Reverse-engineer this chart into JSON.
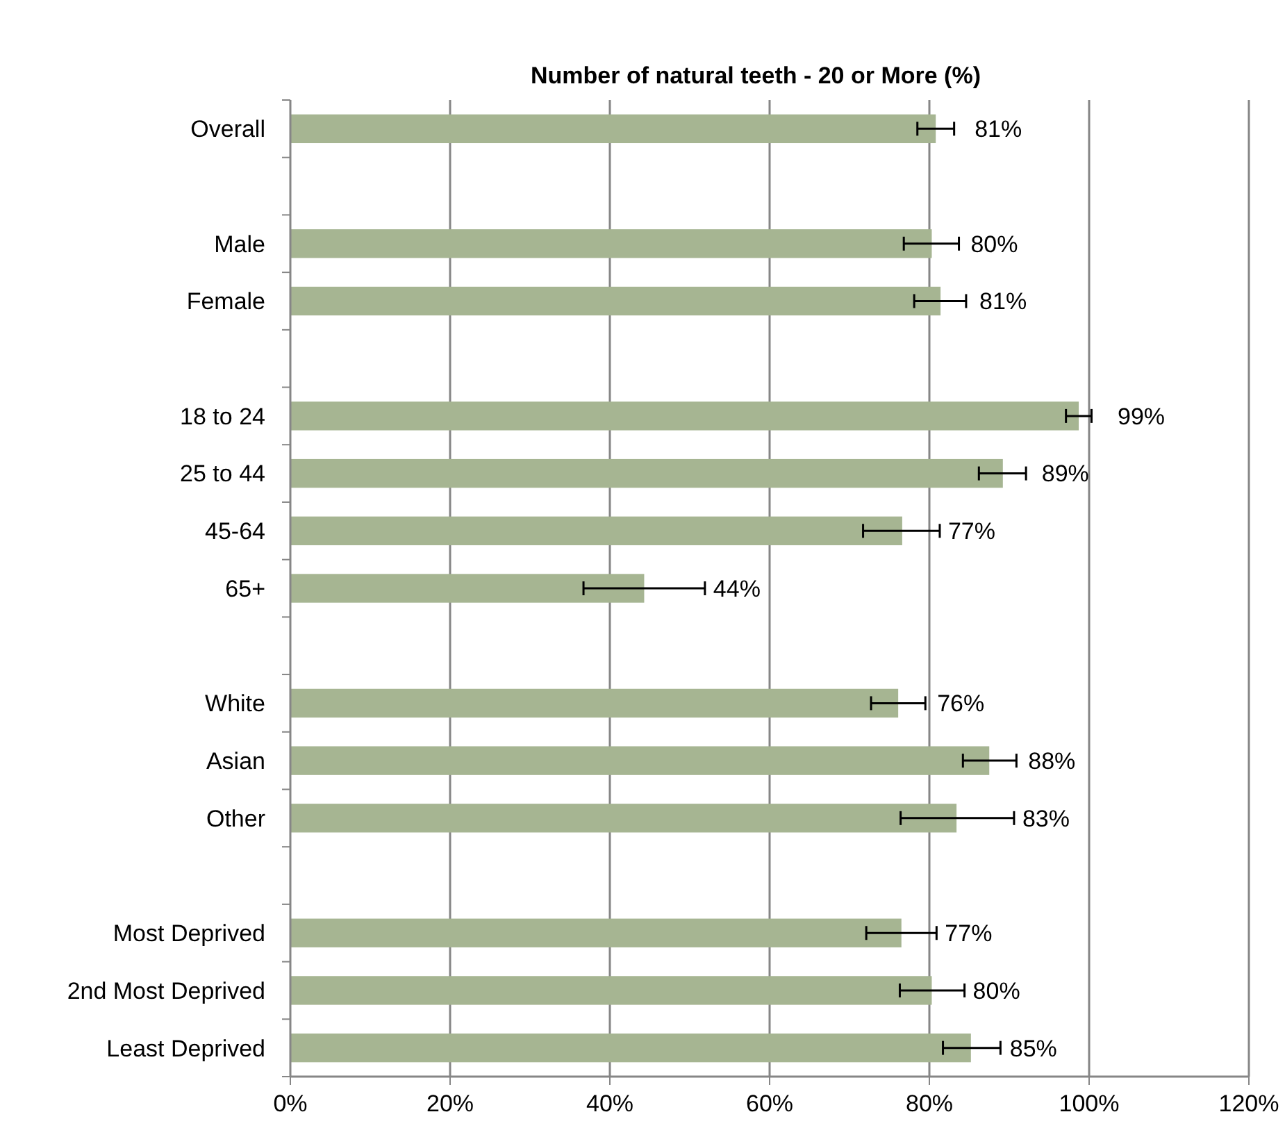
{
  "chart_data": {
    "type": "bar",
    "orientation": "horizontal",
    "title": "Number of natural teeth - 20 or More (%)",
    "categories": [
      "Overall",
      null,
      "Male",
      "Female",
      null,
      "18 to 24",
      "25 to 44",
      "45-64",
      "65+",
      null,
      "White",
      "Asian",
      "Other",
      null,
      "Most Deprived",
      "2nd Most Deprived",
      "Least Deprived"
    ],
    "series": [
      {
        "color": "#a6b592",
        "values": [
          80.8,
          null,
          80.3,
          81.4,
          null,
          98.7,
          89.2,
          76.6,
          44.3,
          null,
          76.1,
          87.5,
          83.4,
          null,
          76.5,
          80.3,
          85.2
        ],
        "errors": [
          [
            78.5,
            83.1
          ],
          null,
          [
            76.8,
            83.7
          ],
          [
            78.1,
            84.6
          ],
          null,
          [
            97.1,
            100.3
          ],
          [
            86.2,
            92.1
          ],
          [
            71.7,
            81.3
          ],
          [
            36.7,
            51.9
          ],
          null,
          [
            72.7,
            79.5
          ],
          [
            84.2,
            90.9
          ],
          [
            76.4,
            90.6
          ],
          null,
          [
            72.1,
            80.9
          ],
          [
            76.3,
            84.4
          ],
          [
            81.7,
            88.9
          ]
        ],
        "value_labels": [
          "81%",
          null,
          "80%",
          "81%",
          null,
          "99%",
          "89%",
          "77%",
          "44%",
          null,
          "76%",
          "88%",
          "83%",
          null,
          "77%",
          "80%",
          "85%"
        ]
      }
    ],
    "xlim": [
      0,
      120
    ],
    "xticks": [
      {
        "value": 0,
        "label": "0%"
      },
      {
        "value": 20,
        "label": "20%"
      },
      {
        "value": 40,
        "label": "40%"
      },
      {
        "value": 60,
        "label": "60%"
      },
      {
        "value": 80,
        "label": "80%"
      },
      {
        "value": 100,
        "label": "100%"
      },
      {
        "value": 120,
        "label": "120%"
      }
    ],
    "grid": "x"
  }
}
